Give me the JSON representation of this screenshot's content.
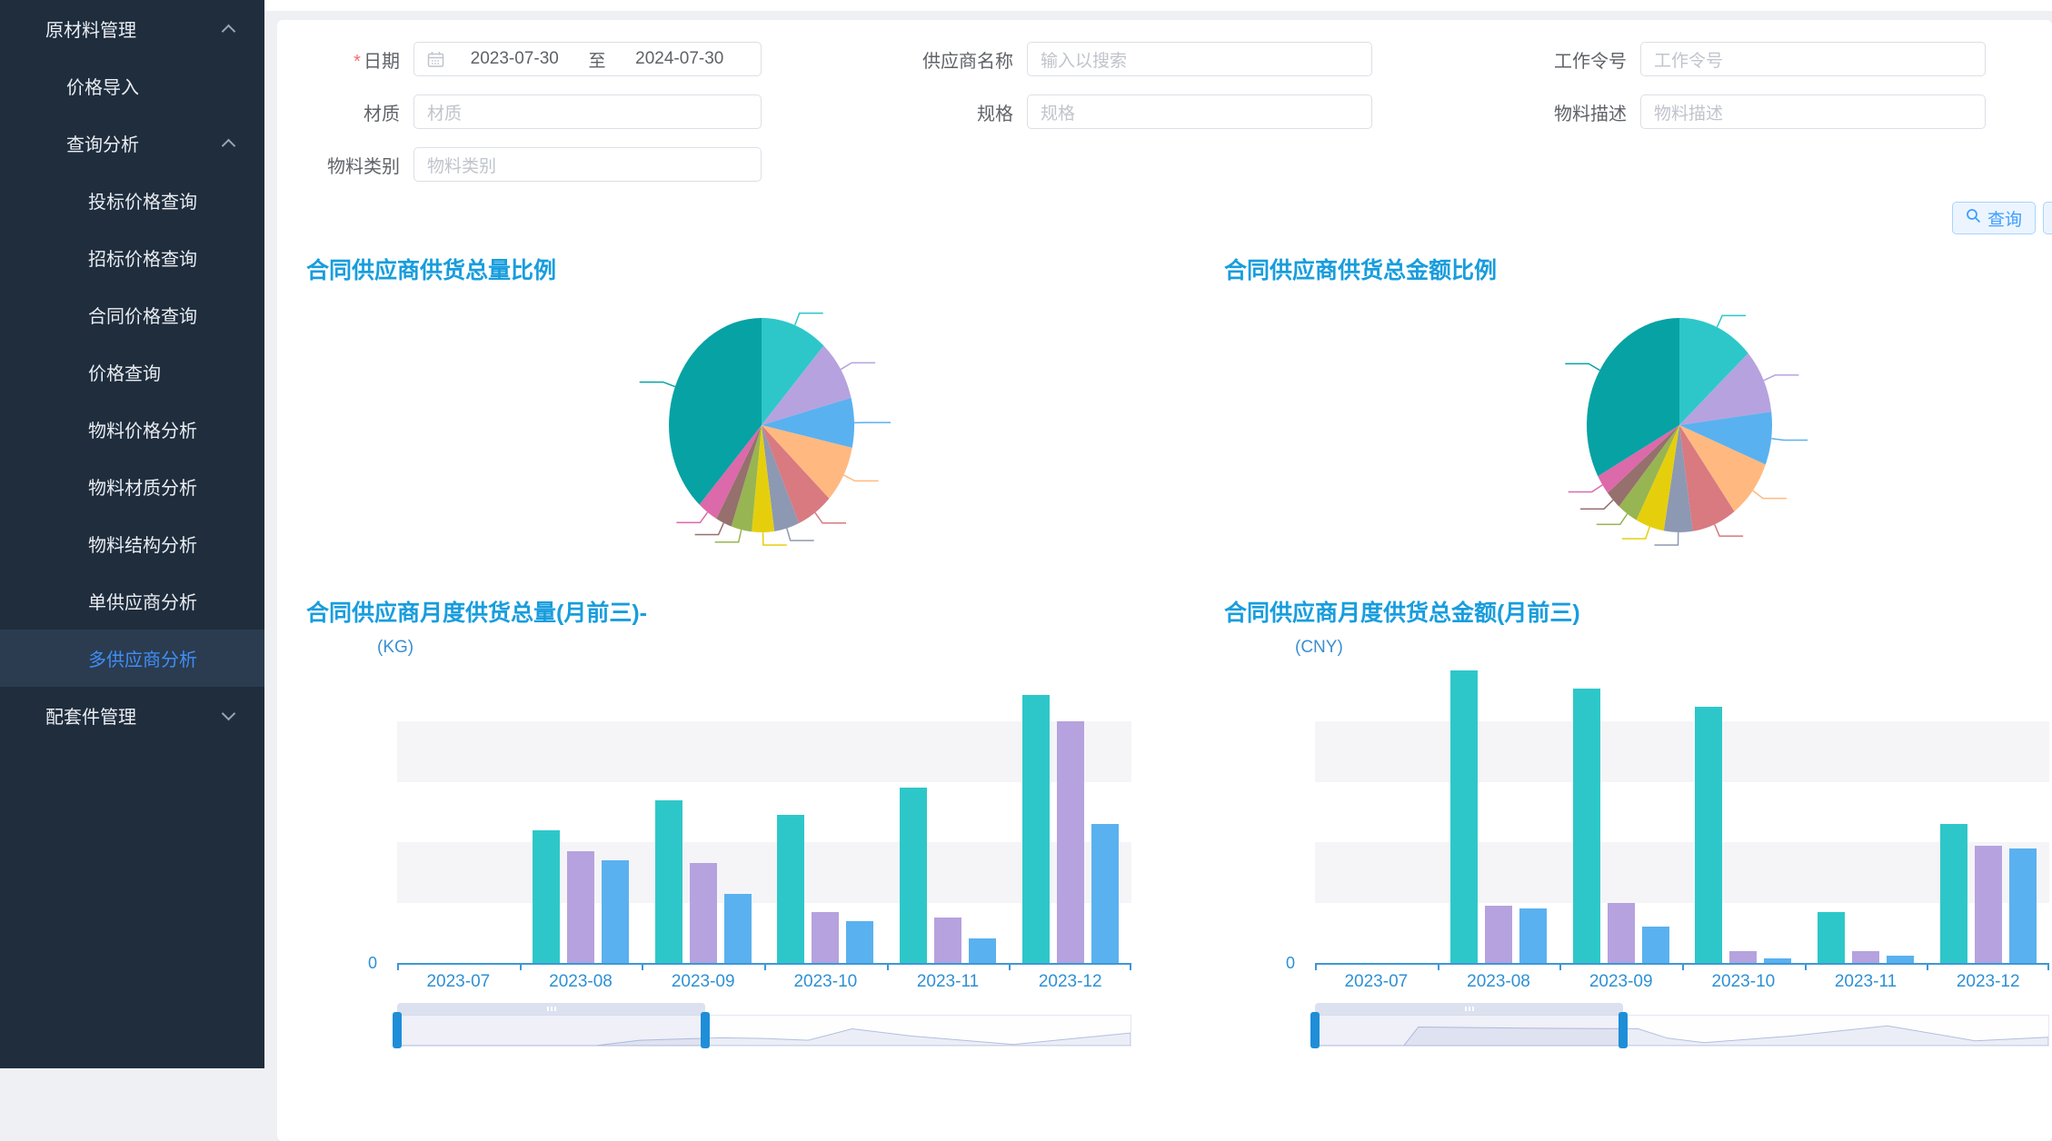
{
  "app": {
    "background": "#eef0f4",
    "sidebar_bg": "#1f2d3d",
    "accent": "#409eff"
  },
  "sidebar": {
    "items": [
      {
        "label": "原材料管理",
        "level": 0,
        "chevron": "up",
        "active": false
      },
      {
        "label": "价格导入",
        "level": 1,
        "chevron": null,
        "active": false
      },
      {
        "label": "查询分析",
        "level": 1,
        "chevron": "up",
        "active": false
      },
      {
        "label": "投标价格查询",
        "level": 2,
        "chevron": null,
        "active": false
      },
      {
        "label": "招标价格查询",
        "level": 2,
        "chevron": null,
        "active": false
      },
      {
        "label": "合同价格查询",
        "level": 2,
        "chevron": null,
        "active": false
      },
      {
        "label": "价格查询",
        "level": 2,
        "chevron": null,
        "active": false
      },
      {
        "label": "物料价格分析",
        "level": 2,
        "chevron": null,
        "active": false
      },
      {
        "label": "物料材质分析",
        "level": 2,
        "chevron": null,
        "active": false
      },
      {
        "label": "物料结构分析",
        "level": 2,
        "chevron": null,
        "active": false
      },
      {
        "label": "单供应商分析",
        "level": 2,
        "chevron": null,
        "active": false
      },
      {
        "label": "多供应商分析",
        "level": 2,
        "chevron": null,
        "active": true
      },
      {
        "label": "配套件管理",
        "level": 0,
        "chevron": "down",
        "active": false
      }
    ]
  },
  "form": {
    "fields": [
      {
        "id": "date-range",
        "label": "日期",
        "required": true,
        "type": "daterange",
        "start": "2023-07-30",
        "separator": "至",
        "end": "2024-07-30"
      },
      {
        "id": "supplier-name",
        "label": "供应商名称",
        "placeholder": "输入以搜索"
      },
      {
        "id": "work-order",
        "label": "工作令号",
        "placeholder": "工作令号"
      },
      {
        "id": "material",
        "label": "材质",
        "placeholder": "材质"
      },
      {
        "id": "spec",
        "label": "规格",
        "placeholder": "规格"
      },
      {
        "id": "material-desc",
        "label": "物料描述",
        "placeholder": "物料描述"
      },
      {
        "id": "material-category",
        "label": "物料类别",
        "placeholder": "物料类别"
      }
    ],
    "actions": {
      "search_label": "查询"
    }
  },
  "chart_data": [
    {
      "id": "pie-supply-volume-ratio",
      "type": "pie",
      "title": "合同供应商供货总量比例",
      "labels_visible": false,
      "legend": "none",
      "slices": [
        {
          "percent": 11.7,
          "color": "#2ec7c9"
        },
        {
          "percent": 9.2,
          "color": "#b6a2de"
        },
        {
          "percent": 7.5,
          "color": "#5ab1ef"
        },
        {
          "percent": 8.6,
          "color": "#ffb980"
        },
        {
          "percent": 6.4,
          "color": "#d87a80"
        },
        {
          "percent": 4.4,
          "color": "#8d98b3"
        },
        {
          "percent": 3.9,
          "color": "#e5cf0d"
        },
        {
          "percent": 3.6,
          "color": "#97b552"
        },
        {
          "percent": 2.8,
          "color": "#95706d"
        },
        {
          "percent": 3.6,
          "color": "#dc69aa"
        },
        {
          "percent": 38.3,
          "color": "#07a2a4"
        }
      ]
    },
    {
      "id": "pie-supply-amount-ratio",
      "type": "pie",
      "title": "合同供应商供货总金额比例",
      "labels_visible": false,
      "legend": "none",
      "slices": [
        {
          "percent": 13.3,
          "color": "#2ec7c9"
        },
        {
          "percent": 9.7,
          "color": "#b6a2de"
        },
        {
          "percent": 8.0,
          "color": "#5ab1ef"
        },
        {
          "percent": 8.9,
          "color": "#ffb980"
        },
        {
          "percent": 7.8,
          "color": "#d87a80"
        },
        {
          "percent": 5.0,
          "color": "#8d98b3"
        },
        {
          "percent": 5.0,
          "color": "#e5cf0d"
        },
        {
          "percent": 3.6,
          "color": "#97b552"
        },
        {
          "percent": 2.8,
          "color": "#95706d"
        },
        {
          "percent": 3.0,
          "color": "#dc69aa"
        },
        {
          "percent": 32.9,
          "color": "#07a2a4"
        }
      ]
    },
    {
      "id": "bar-monthly-volume",
      "type": "bar",
      "title": "合同供应商月度供货总量(月前三)-",
      "unit": "(KG)",
      "categories": [
        "2023-07",
        "2023-08",
        "2023-09",
        "2023-10",
        "2023-11",
        "2023-12"
      ],
      "y_axis": {
        "min_label": "0",
        "ylim": [
          0,
          100
        ],
        "splits": 5,
        "note": "values are % of axis max; only 0 is labeled"
      },
      "series": [
        {
          "color": "#2ec7c9",
          "values": [
            0,
            44,
            54,
            49,
            58,
            89
          ]
        },
        {
          "color": "#b6a2de",
          "values": [
            0,
            37,
            33,
            17,
            15,
            80
          ]
        },
        {
          "color": "#5ab1ef",
          "values": [
            0,
            34,
            23,
            14,
            8,
            46
          ]
        }
      ],
      "datazoom": {
        "start_pct": 0,
        "end_pct": 42,
        "minimap": [
          [
            0,
            0
          ],
          [
            0.27,
            0
          ],
          [
            0.33,
            0.18
          ],
          [
            0.44,
            0.26
          ],
          [
            0.5,
            0.24
          ],
          [
            0.56,
            0.18
          ],
          [
            0.62,
            0.56
          ],
          [
            0.7,
            0.32
          ],
          [
            0.84,
            0.04
          ],
          [
            1,
            0.42
          ]
        ]
      }
    },
    {
      "id": "bar-monthly-amount",
      "type": "bar",
      "title": "合同供应商月度供货总金额(月前三)",
      "unit": "(CNY)",
      "categories": [
        "2023-07",
        "2023-08",
        "2023-09",
        "2023-10",
        "2023-11",
        "2023-12"
      ],
      "y_axis": {
        "min_label": "0",
        "ylim": [
          0,
          100
        ],
        "splits": 5,
        "note": "values are % of axis max; only 0 is labeled"
      },
      "series": [
        {
          "color": "#2ec7c9",
          "values": [
            0,
            97,
            91,
            85,
            17,
            46
          ]
        },
        {
          "color": "#b6a2de",
          "values": [
            0,
            19,
            20,
            4,
            4,
            39
          ]
        },
        {
          "color": "#5ab1ef",
          "values": [
            0,
            18,
            12,
            1.5,
            2.3,
            38
          ]
        }
      ],
      "datazoom": {
        "start_pct": 0,
        "end_pct": 42,
        "minimap": [
          [
            0,
            0
          ],
          [
            0.12,
            0
          ],
          [
            0.14,
            0.62
          ],
          [
            0.3,
            0.58
          ],
          [
            0.44,
            0.56
          ],
          [
            0.48,
            0.25
          ],
          [
            0.53,
            0.1
          ],
          [
            0.65,
            0.32
          ],
          [
            0.78,
            0.66
          ],
          [
            0.9,
            0.16
          ],
          [
            1,
            0.28
          ]
        ]
      }
    }
  ]
}
